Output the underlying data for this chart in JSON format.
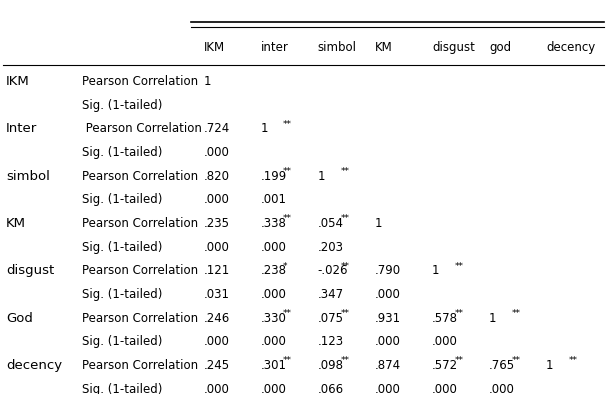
{
  "col_headers": [
    "IKM",
    "inter",
    "simbol",
    "KM",
    "disgust",
    "god",
    "decency"
  ],
  "row_groups": [
    {
      "label": "IKM",
      "rows": [
        {
          "type": "Pearson Correlation",
          "values": [
            "1",
            "",
            "",
            "",
            "",
            "",
            ""
          ]
        },
        {
          "type": "Sig. (1-tailed)",
          "values": [
            "",
            "",
            "",
            "",
            "",
            "",
            ""
          ]
        }
      ]
    },
    {
      "label": "Inter",
      "rows": [
        {
          "type": " Pearson Correlation",
          "values": [
            ".724**",
            "1",
            "",
            "",
            "",
            "",
            ""
          ]
        },
        {
          "type": "Sig. (1-tailed)",
          "values": [
            ".000",
            "",
            "",
            "",
            "",
            "",
            ""
          ]
        }
      ]
    },
    {
      "label": "simbol",
      "rows": [
        {
          "type": "Pearson Correlation",
          "values": [
            ".820**",
            ".199**",
            "1",
            "",
            "",
            "",
            ""
          ]
        },
        {
          "type": "Sig. (1-tailed)",
          "values": [
            ".000",
            ".001",
            "",
            "",
            "",
            "",
            ""
          ]
        }
      ]
    },
    {
      "label": "KM",
      "rows": [
        {
          "type": "Pearson Correlation",
          "values": [
            ".235**",
            ".338**",
            ".054",
            "1",
            "",
            "",
            ""
          ]
        },
        {
          "type": "Sig. (1-tailed)",
          "values": [
            ".000",
            ".000",
            ".203",
            "",
            "",
            "",
            ""
          ]
        }
      ]
    },
    {
      "label": "disgust",
      "rows": [
        {
          "type": "Pearson Correlation",
          "values": [
            ".121*",
            ".238**",
            "-.026",
            ".790**",
            "1",
            "",
            ""
          ]
        },
        {
          "type": "Sig. (1-tailed)",
          "values": [
            ".031",
            ".000",
            ".347",
            ".000",
            "",
            "",
            ""
          ]
        }
      ]
    },
    {
      "label": "God",
      "rows": [
        {
          "type": "Pearson Correlation",
          "values": [
            ".246**",
            ".330**",
            ".075",
            ".931**",
            ".578**",
            "1",
            ""
          ]
        },
        {
          "type": "Sig. (1-tailed)",
          "values": [
            ".000",
            ".000",
            ".123",
            ".000",
            ".000",
            "",
            ""
          ]
        }
      ]
    },
    {
      "label": "decency",
      "rows": [
        {
          "type": "Pearson Correlation",
          "values": [
            ".245**",
            ".301**",
            ".098",
            ".874**",
            ".572**",
            ".765**",
            "1"
          ]
        },
        {
          "type": "Sig. (1-tailed)",
          "values": [
            ".000",
            ".000",
            ".066",
            ".000",
            ".000",
            ".000",
            ""
          ]
        }
      ]
    }
  ],
  "superscript_map": {
    ".724**": [
      ".724",
      "**"
    ],
    ".820**": [
      ".820",
      "**"
    ],
    ".199**": [
      ".199",
      "**"
    ],
    ".235**": [
      ".235",
      "**"
    ],
    ".338**": [
      ".338",
      "**"
    ],
    ".121*": [
      ".121",
      "*"
    ],
    ".238**": [
      ".238",
      "**"
    ],
    ".790**": [
      ".790",
      "**"
    ],
    ".246**": [
      ".246",
      "**"
    ],
    ".330**": [
      ".330",
      "**"
    ],
    ".931**": [
      ".931",
      "**"
    ],
    ".578**": [
      ".578",
      "**"
    ],
    ".245**": [
      ".245",
      "**"
    ],
    ".301**": [
      ".301",
      "**"
    ],
    ".874**": [
      ".874",
      "**"
    ],
    ".572**": [
      ".572",
      "**"
    ],
    ".765**": [
      ".765",
      "**"
    ]
  },
  "bg_color": "#ffffff",
  "text_color": "#000000",
  "font_size": 8.5,
  "label_font_size": 9.5
}
